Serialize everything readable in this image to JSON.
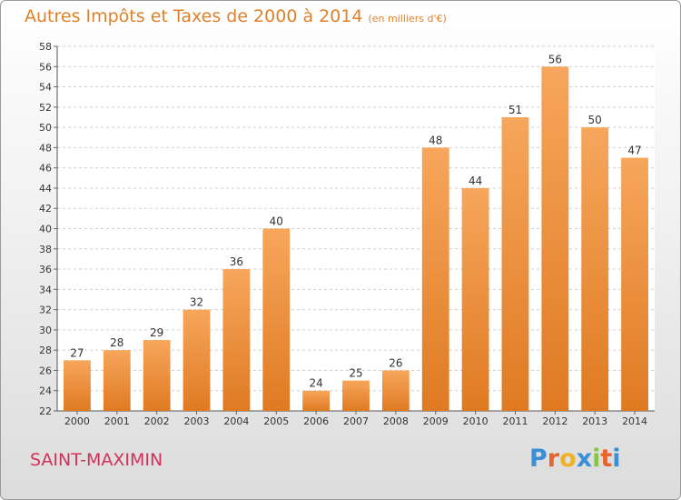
{
  "header": {
    "title": "Autres Impôts et Taxes de 2000 à 2014",
    "subtitle": "(en milliers d'€)"
  },
  "footer": {
    "place": "SAINT-MAXIMIN",
    "logo_letters": [
      "P",
      "r",
      "o",
      "x",
      "i",
      "t",
      "i"
    ]
  },
  "colors": {
    "title": "#e0812a",
    "place": "#d0325a",
    "bar_light": "#f7a65c",
    "bar_dark": "#df7a22",
    "logo": [
      "#3a8fd6",
      "#e9632c",
      "#f0b12a",
      "#3a8fd6",
      "#8bc34a",
      "#e9632c",
      "#3a8fd6"
    ]
  },
  "chart_data": {
    "type": "bar",
    "title": "Autres Impôts et Taxes de 2000 à 2014",
    "subtitle": "(en milliers d'€)",
    "categories": [
      "2000",
      "2001",
      "2002",
      "2003",
      "2004",
      "2005",
      "2006",
      "2007",
      "2008",
      "2009",
      "2010",
      "2011",
      "2012",
      "2013",
      "2014"
    ],
    "values": [
      27,
      28,
      29,
      32,
      36,
      40,
      24,
      25,
      26,
      48,
      44,
      51,
      56,
      50,
      47
    ],
    "ylim": [
      22,
      58
    ],
    "yticks": [
      22,
      24,
      26,
      28,
      30,
      32,
      34,
      36,
      38,
      40,
      42,
      44,
      46,
      48,
      50,
      52,
      54,
      56,
      58
    ],
    "grid": true,
    "xlabel": "",
    "ylabel": ""
  }
}
